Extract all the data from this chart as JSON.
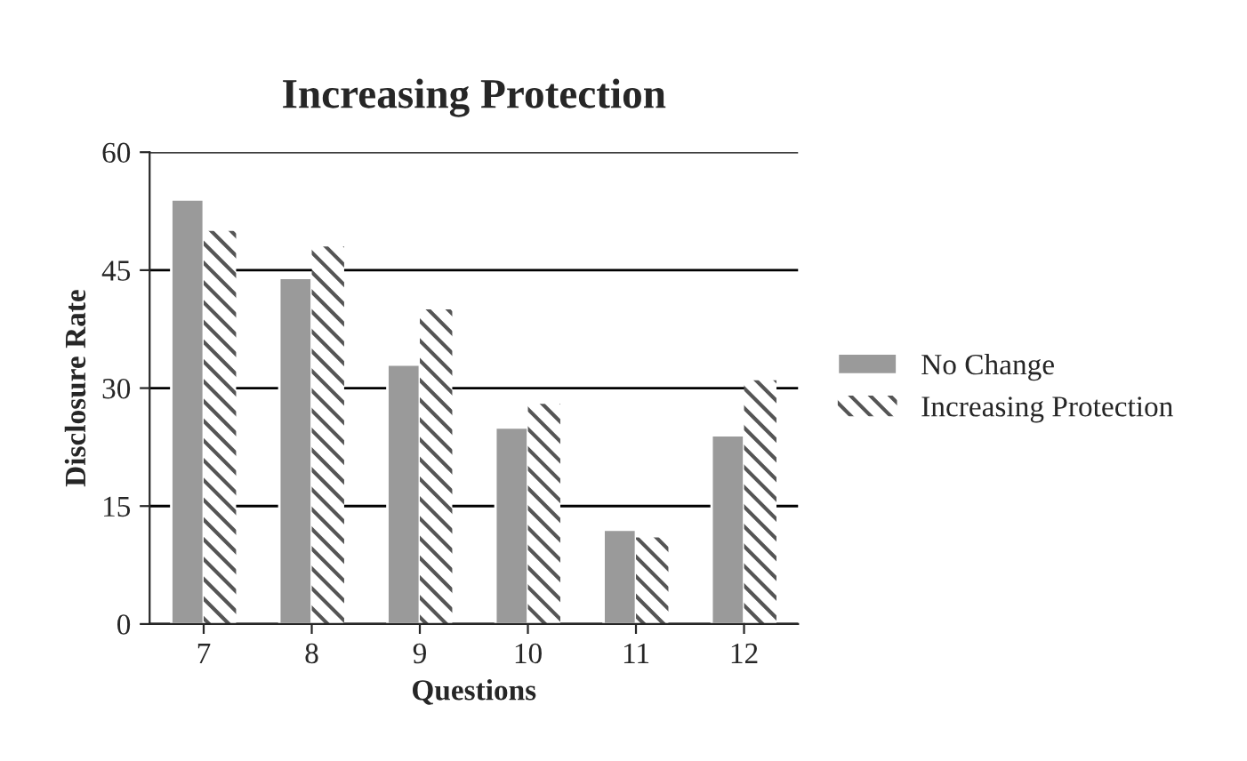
{
  "chart_data": {
    "type": "bar",
    "title": "Increasing Protection",
    "xlabel": "Questions",
    "ylabel": "Disclosure Rate",
    "categories": [
      "7",
      "8",
      "9",
      "10",
      "11",
      "12"
    ],
    "series": [
      {
        "name": "No Change",
        "color": "#9a9a9a",
        "values": [
          54,
          44,
          33,
          25,
          12,
          24
        ]
      },
      {
        "name": "Increasing Protection",
        "color": "#555555",
        "values": [
          50,
          48,
          40,
          28,
          11,
          31
        ]
      }
    ],
    "ylim": [
      0,
      60
    ],
    "yticks": [
      0,
      15,
      30,
      45,
      60
    ],
    "grid": "y",
    "legend": "right"
  }
}
